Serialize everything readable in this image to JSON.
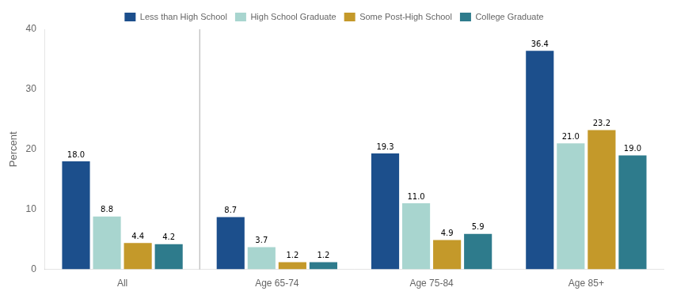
{
  "chart_data": {
    "type": "bar",
    "categories": [
      "All",
      "Age 65-74",
      "Age 75-84",
      "Age 85+"
    ],
    "series": [
      {
        "name": "Less than High School",
        "color": "#1c4f8c",
        "values": [
          18.0,
          8.7,
          19.3,
          36.4
        ],
        "value_labels": [
          "18.0",
          "8.7",
          "19.3",
          "36.4"
        ]
      },
      {
        "name": "High School Graduate",
        "color": "#a8d5cf",
        "values": [
          8.8,
          3.7,
          11.0,
          21.0
        ],
        "value_labels": [
          "8.8",
          "3.7",
          "11.0",
          "21.0"
        ]
      },
      {
        "name": "Some Post-High School",
        "color": "#c4992a",
        "values": [
          4.4,
          1.2,
          4.9,
          23.2
        ],
        "value_labels": [
          "4.4",
          "1.2",
          "4.9",
          "23.2"
        ]
      },
      {
        "name": "College Graduate",
        "color": "#2e7b8c",
        "values": [
          4.2,
          1.2,
          5.9,
          19.0
        ],
        "value_labels": [
          "4.2",
          "1.2",
          "5.9",
          "19.0"
        ]
      }
    ],
    "ylabel": "Percent",
    "ylim": [
      0,
      40
    ],
    "yticks": [
      0,
      10,
      20,
      30,
      40
    ],
    "grid": false,
    "legend": "top",
    "data_labels": true
  }
}
